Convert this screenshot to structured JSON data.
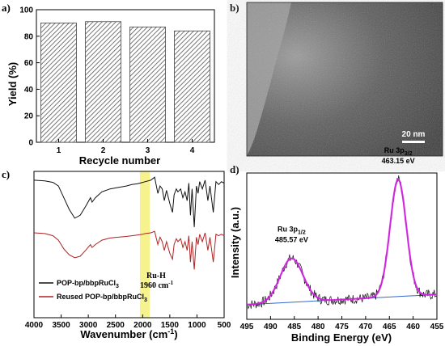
{
  "colors": {
    "axis": "#000000",
    "bar_hatch": "#555555",
    "ir_black": "#111111",
    "ir_red": "#b22222",
    "highlight": "#f5f07a",
    "xps_raw": "#111111",
    "xps_fit": "#e020e0",
    "xps_peak": "#3344dd",
    "xps_baseline": "#3366cc"
  },
  "panels": {
    "a": {
      "label": "a)"
    },
    "b": {
      "label": "b)",
      "scale_bar": "20 nm"
    },
    "c": {
      "label": "c)",
      "annotation_1": "Ru-H",
      "annotation_2": "1960 cm",
      "annotation_sup": "-1"
    },
    "d": {
      "label": "d)"
    }
  },
  "chart_data": [
    {
      "type": "bar",
      "panel": "a",
      "categories": [
        "1",
        "2",
        "3",
        "4"
      ],
      "values": [
        90,
        91,
        87,
        84
      ],
      "xlabel": "Recycle number",
      "ylabel": "Yield (%)",
      "ylim": [
        0,
        100
      ],
      "yticks": [
        "0",
        "20",
        "40",
        "60",
        "80",
        "100"
      ]
    },
    {
      "type": "line",
      "panel": "c",
      "xlabel": "Wavenumber (cm",
      "xlabel_sup": "-1",
      "xlabel_end": ")",
      "xlim": [
        4000,
        500
      ],
      "xticks": [
        "4000",
        "3500",
        "3000",
        "2500",
        "2000",
        "1500",
        "1000",
        "500"
      ],
      "highlight_range": [
        2050,
        1870
      ],
      "series": [
        {
          "name": "POP-bp/bbpRuCl",
          "name_sub": "3",
          "color_key": "ir_black",
          "points": [
            [
              4000,
              0.94
            ],
            [
              3800,
              0.935
            ],
            [
              3650,
              0.925
            ],
            [
              3550,
              0.9
            ],
            [
              3450,
              0.82
            ],
            [
              3350,
              0.74
            ],
            [
              3250,
              0.68
            ],
            [
              3150,
              0.7
            ],
            [
              3050,
              0.76
            ],
            [
              2960,
              0.82
            ],
            [
              2930,
              0.79
            ],
            [
              2870,
              0.82
            ],
            [
              2750,
              0.86
            ],
            [
              2600,
              0.88
            ],
            [
              2450,
              0.89
            ],
            [
              2300,
              0.9
            ],
            [
              2200,
              0.91
            ],
            [
              2100,
              0.915
            ],
            [
              2000,
              0.925
            ],
            [
              1950,
              0.93
            ],
            [
              1850,
              0.94
            ],
            [
              1780,
              0.96
            ],
            [
              1720,
              0.85
            ],
            [
              1680,
              0.9
            ],
            [
              1640,
              0.88
            ],
            [
              1600,
              0.8
            ],
            [
              1560,
              0.87
            ],
            [
              1500,
              0.78
            ],
            [
              1450,
              0.72
            ],
            [
              1420,
              0.84
            ],
            [
              1380,
              0.88
            ],
            [
              1350,
              0.86
            ],
            [
              1300,
              0.88
            ],
            [
              1260,
              0.82
            ],
            [
              1220,
              0.86
            ],
            [
              1180,
              0.8
            ],
            [
              1150,
              0.92
            ],
            [
              1120,
              0.7
            ],
            [
              1090,
              0.88
            ],
            [
              1050,
              0.62
            ],
            [
              1010,
              0.9
            ],
            [
              980,
              0.85
            ],
            [
              950,
              0.93
            ],
            [
              900,
              0.88
            ],
            [
              850,
              0.94
            ],
            [
              800,
              0.8
            ],
            [
              760,
              0.9
            ],
            [
              700,
              0.72
            ],
            [
              650,
              0.93
            ],
            [
              600,
              0.91
            ],
            [
              550,
              0.93
            ],
            [
              500,
              0.92
            ]
          ]
        },
        {
          "name": "Reused POP-bp/bbpRuCl",
          "name_sub": "3",
          "color_key": "ir_red",
          "points": [
            [
              4000,
              0.58
            ],
            [
              3800,
              0.575
            ],
            [
              3650,
              0.56
            ],
            [
              3550,
              0.53
            ],
            [
              3450,
              0.47
            ],
            [
              3350,
              0.43
            ],
            [
              3250,
              0.41
            ],
            [
              3150,
              0.42
            ],
            [
              3050,
              0.46
            ],
            [
              2960,
              0.5
            ],
            [
              2930,
              0.48
            ],
            [
              2870,
              0.5
            ],
            [
              2750,
              0.53
            ],
            [
              2600,
              0.545
            ],
            [
              2450,
              0.55
            ],
            [
              2300,
              0.555
            ],
            [
              2200,
              0.56
            ],
            [
              2100,
              0.565
            ],
            [
              2000,
              0.57
            ],
            [
              1950,
              0.575
            ],
            [
              1850,
              0.58
            ],
            [
              1780,
              0.59
            ],
            [
              1720,
              0.5
            ],
            [
              1680,
              0.55
            ],
            [
              1640,
              0.52
            ],
            [
              1600,
              0.46
            ],
            [
              1560,
              0.52
            ],
            [
              1500,
              0.44
            ],
            [
              1450,
              0.4
            ],
            [
              1420,
              0.5
            ],
            [
              1380,
              0.54
            ],
            [
              1350,
              0.52
            ],
            [
              1300,
              0.54
            ],
            [
              1260,
              0.48
            ],
            [
              1220,
              0.52
            ],
            [
              1180,
              0.46
            ],
            [
              1150,
              0.56
            ],
            [
              1120,
              0.38
            ],
            [
              1090,
              0.52
            ],
            [
              1050,
              0.33
            ],
            [
              1010,
              0.55
            ],
            [
              980,
              0.5
            ],
            [
              950,
              0.57
            ],
            [
              900,
              0.52
            ],
            [
              850,
              0.58
            ],
            [
              800,
              0.46
            ],
            [
              760,
              0.55
            ],
            [
              700,
              0.38
            ],
            [
              650,
              0.57
            ],
            [
              600,
              0.56
            ],
            [
              550,
              0.57
            ],
            [
              500,
              0.56
            ]
          ]
        }
      ]
    },
    {
      "type": "line",
      "panel": "d",
      "xlabel": "Binding Energy (eV)",
      "ylabel": "Intensity (a.u.)",
      "xlim": [
        495,
        455
      ],
      "xticks": [
        "495",
        "490",
        "485",
        "480",
        "475",
        "470",
        "465",
        "460",
        "455"
      ],
      "peaks": [
        {
          "center": 485.57,
          "height": 0.3,
          "sigma": 2.4,
          "label_main": "Ru 3p",
          "label_sub": "1/2",
          "label_value": "485.57 eV"
        },
        {
          "center": 463.15,
          "height": 0.8,
          "sigma": 1.7,
          "label_main": "Ru 3p",
          "label_sub": "3/2",
          "label_value": "463.15 eV"
        }
      ],
      "baseline": [
        [
          495,
          0.1
        ],
        [
          455,
          0.17
        ]
      ]
    }
  ]
}
